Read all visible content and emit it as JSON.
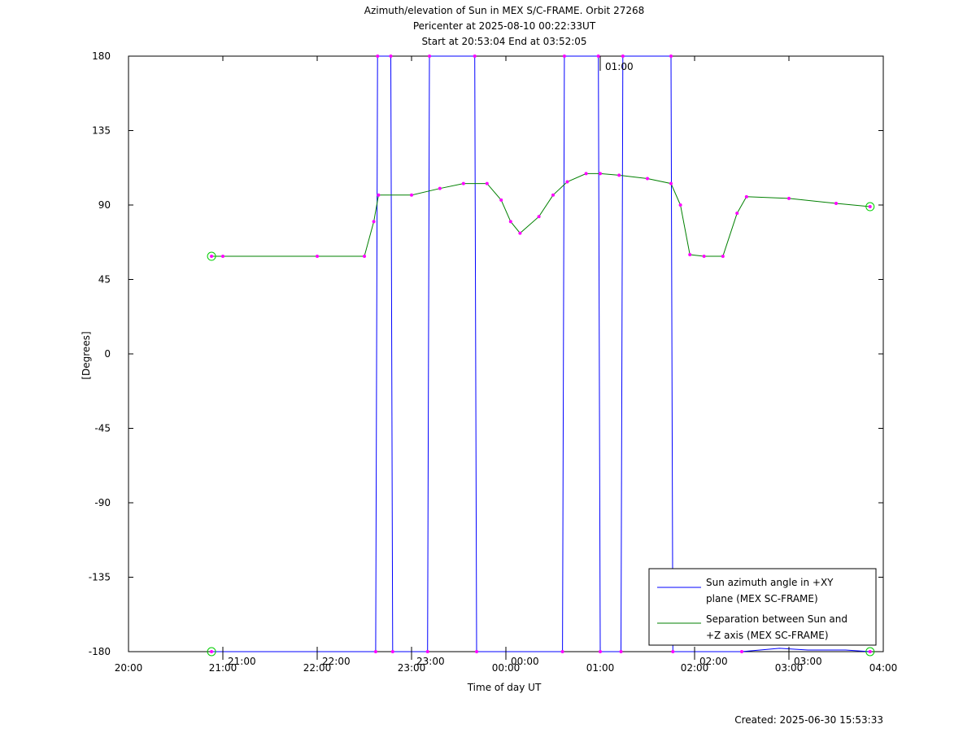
{
  "chart_data": {
    "type": "line",
    "title_lines": [
      "Azimuth/elevation of Sun in MEX S/C-FRAME.  Orbit 27268",
      "Pericenter at 2025-08-10 00:22:33UT",
      "Start at 20:53:04 End at 03:52:05"
    ],
    "xlabel": "Time of day UT",
    "ylabel": "[Degrees]",
    "x_unit": "hours since 20:00 UT",
    "xlim": [
      0,
      8
    ],
    "ylim": [
      -180,
      180
    ],
    "xtick_labels": [
      "20:00",
      "21:00",
      "22:00",
      "23:00",
      "00:00",
      "01:00",
      "02:00",
      "03:00",
      "04:00"
    ],
    "ytick_labels": [
      "180",
      "135",
      "90",
      "45",
      "0",
      "-45",
      "-90",
      "-135",
      "-180"
    ],
    "ytick_values": [
      180,
      135,
      90,
      45,
      0,
      -45,
      -90,
      -135,
      -180
    ],
    "hour_markers": [
      {
        "label": "21:00",
        "x": 1.0,
        "y": -180
      },
      {
        "label": "22:00",
        "x": 2.0,
        "y": -180
      },
      {
        "label": "23:00",
        "x": 3.0,
        "y": -180
      },
      {
        "label": "00:00",
        "x": 4.0,
        "y": -180
      },
      {
        "label": "01:00",
        "x": 5.0,
        "y": 180
      },
      {
        "label": "02:00",
        "x": 6.0,
        "y": -180
      },
      {
        "label": "03:00",
        "x": 7.0,
        "y": -180
      }
    ],
    "legend_position": "bottom-right",
    "series": [
      {
        "name_lines": [
          "Sun azimuth angle in +XY",
          "plane (MEX SC-FRAME)"
        ],
        "color": "#0000ff",
        "x": [
          0.88,
          2.62,
          2.64,
          2.78,
          2.8,
          3.17,
          3.19,
          3.67,
          3.69,
          4.6,
          4.62,
          4.98,
          5.0,
          5.22,
          5.24,
          5.75,
          5.77,
          6.5,
          6.9,
          7.2,
          7.6,
          7.86
        ],
        "y": [
          -180,
          -180,
          180,
          180,
          -180,
          -180,
          180,
          180,
          -180,
          -180,
          180,
          180,
          -180,
          -180,
          180,
          180,
          -180,
          -180,
          -178,
          -179,
          -179,
          -180
        ]
      },
      {
        "name_lines": [
          "Separation between Sun and",
          "+Z axis (MEX SC-FRAME)"
        ],
        "color": "#008000",
        "x": [
          0.88,
          1.0,
          2.0,
          2.5,
          2.6,
          2.65,
          3.0,
          3.3,
          3.55,
          3.8,
          3.95,
          4.05,
          4.15,
          4.35,
          4.5,
          4.65,
          4.85,
          5.0,
          5.2,
          5.5,
          5.75,
          5.85,
          5.95,
          6.1,
          6.3,
          6.45,
          6.55,
          7.0,
          7.5,
          7.86
        ],
        "y": [
          59,
          59,
          59,
          59,
          80,
          96,
          96,
          100,
          103,
          103,
          93,
          80,
          73,
          83,
          96,
          104,
          109,
          109,
          108,
          106,
          103,
          90,
          60,
          59,
          59,
          85,
          95,
          94,
          91,
          89
        ]
      }
    ],
    "footer": "Created: 2025-06-30 15:53:33"
  }
}
